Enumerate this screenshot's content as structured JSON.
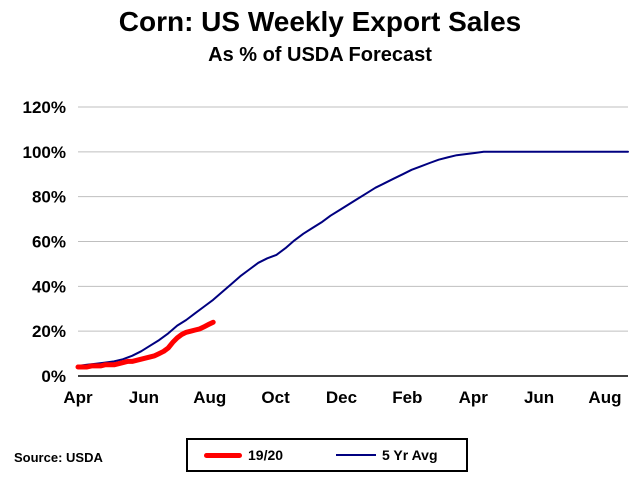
{
  "chart_data": {
    "type": "line",
    "title": "Corn: US Weekly Export Sales",
    "subtitle": "As % of USDA Forecast",
    "xlabel": "",
    "ylabel": "",
    "ylim": [
      0,
      120
    ],
    "y_ticks": [
      "0%",
      "20%",
      "40%",
      "60%",
      "80%",
      "100%",
      "120%"
    ],
    "x_ticks": [
      "Apr",
      "Jun",
      "Aug",
      "Oct",
      "Dec",
      "Feb",
      "Apr",
      "Jun",
      "Aug"
    ],
    "grid": "horizontal",
    "legend_position": "bottom",
    "series": [
      {
        "name": "19/20",
        "color": "#ff0000",
        "x": [
          0,
          1,
          2,
          3,
          4,
          5,
          6,
          7,
          8,
          9,
          10,
          11,
          12,
          13,
          14,
          15,
          16,
          17,
          18,
          19,
          20,
          21,
          22,
          23,
          24,
          25,
          26,
          27,
          28,
          29,
          30
        ],
        "values": [
          4,
          4,
          4,
          4.5,
          4.5,
          4.5,
          5,
          5,
          5,
          5.5,
          6,
          6.5,
          6.5,
          7,
          7.5,
          8,
          8.5,
          9,
          10,
          11,
          12.5,
          15,
          17,
          18.5,
          19.5,
          20,
          20.5,
          21,
          22,
          23,
          24
        ]
      },
      {
        "name": "5 Yr Avg",
        "color": "#000080",
        "x": [
          0,
          2,
          4,
          6,
          8,
          10,
          12,
          14,
          16,
          18,
          20,
          22,
          24,
          26,
          28,
          30,
          32,
          34,
          36,
          38,
          40,
          42,
          44,
          46,
          48,
          50,
          52,
          54,
          56,
          58,
          60,
          62,
          64,
          66,
          68,
          70,
          72,
          74,
          76,
          78,
          80,
          82,
          84,
          86,
          88,
          90,
          92,
          94,
          96,
          98,
          100,
          102,
          104,
          106,
          108,
          110,
          112,
          114,
          116,
          118,
          120,
          122
        ],
        "values": [
          4.5,
          5,
          5.5,
          6,
          6.5,
          7.5,
          9,
          11,
          13.5,
          16,
          19,
          22.5,
          25,
          28,
          31,
          34,
          37.5,
          41,
          44.5,
          47.5,
          50.5,
          52.5,
          54,
          57,
          60.5,
          63.5,
          66,
          68.5,
          71.5,
          74,
          76.5,
          79,
          81.5,
          84,
          86,
          88,
          90,
          92,
          93.5,
          95,
          96.5,
          97.5,
          98.5,
          99,
          99.5,
          100,
          100,
          100,
          100,
          100,
          100,
          100,
          100,
          100,
          100,
          100,
          100,
          100,
          100,
          100,
          100,
          100
        ]
      }
    ]
  },
  "source": "Source: USDA"
}
